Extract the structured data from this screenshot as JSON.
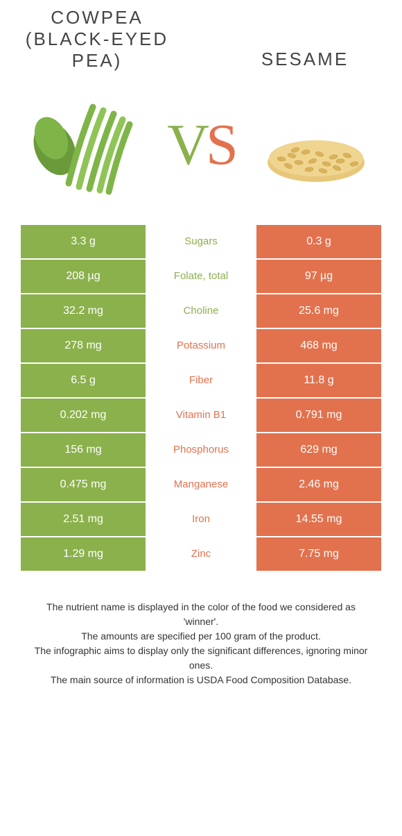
{
  "header": {
    "left_title_line1": "COWPEA",
    "left_title_line2": "(BLACK-EYED",
    "left_title_line3": "PEA)",
    "right_title": "SESAME",
    "vs_v": "V",
    "vs_s": "S"
  },
  "colors": {
    "green": "#8bb14c",
    "orange": "#e2724e",
    "text": "#444444",
    "footer_text": "#333333",
    "bg": "#ffffff"
  },
  "rows": [
    {
      "left": "3.3 g",
      "label": "Sugars",
      "right": "0.3 g",
      "winner": "green"
    },
    {
      "left": "208 µg",
      "label": "Folate, total",
      "right": "97 µg",
      "winner": "green"
    },
    {
      "left": "32.2 mg",
      "label": "Choline",
      "right": "25.6 mg",
      "winner": "green"
    },
    {
      "left": "278 mg",
      "label": "Potassium",
      "right": "468 mg",
      "winner": "orange"
    },
    {
      "left": "6.5 g",
      "label": "Fiber",
      "right": "11.8 g",
      "winner": "orange"
    },
    {
      "left": "0.202 mg",
      "label": "Vitamin B1",
      "right": "0.791 mg",
      "winner": "orange"
    },
    {
      "left": "156 mg",
      "label": "Phosphorus",
      "right": "629 mg",
      "winner": "orange"
    },
    {
      "left": "0.475 mg",
      "label": "Manganese",
      "right": "2.46 mg",
      "winner": "orange"
    },
    {
      "left": "2.51 mg",
      "label": "Iron",
      "right": "14.55 mg",
      "winner": "orange"
    },
    {
      "left": "1.29 mg",
      "label": "Zinc",
      "right": "7.75 mg",
      "winner": "orange"
    }
  ],
  "footer": {
    "line1": "The nutrient name is displayed in the color of the food we considered as 'winner'.",
    "line2": "The amounts are specified per 100 gram of the product.",
    "line3": "The infographic aims to display only the significant differences, ignoring minor ones.",
    "line4": "The main source of information is USDA Food Composition Database."
  }
}
